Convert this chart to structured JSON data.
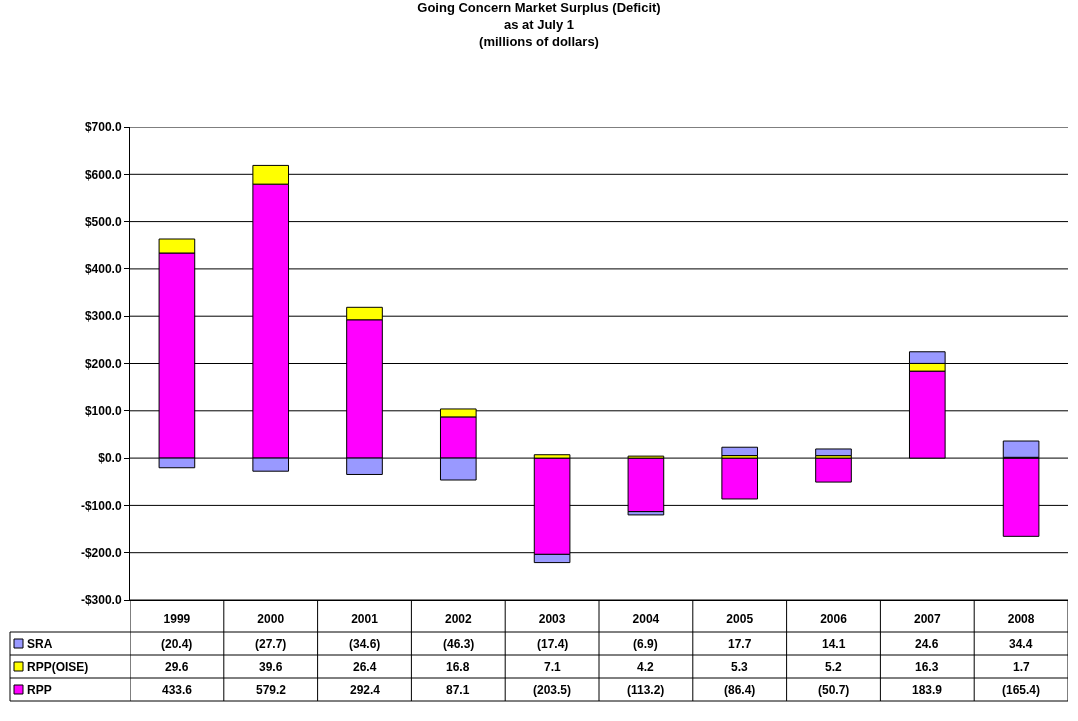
{
  "chart_data": {
    "type": "bar",
    "title": "Going Concern Market Surplus (Deficit)\nas at July 1\n(millions of dollars)",
    "categories": [
      "1999",
      "2000",
      "2001",
      "2002",
      "2003",
      "2004",
      "2005",
      "2006",
      "2007",
      "2008"
    ],
    "stacked": true,
    "series": [
      {
        "name": "RPP",
        "color": "#ff00ff",
        "values": [
          433.6,
          579.2,
          292.4,
          87.1,
          -203.5,
          -113.2,
          -86.4,
          -50.7,
          183.9,
          -165.4
        ],
        "value_labels": [
          "433.6",
          "579.2",
          "292.4",
          "87.1",
          "(203.5)",
          "(113.2)",
          "(86.4)",
          "(50.7)",
          "183.9",
          "(165.4)"
        ]
      },
      {
        "name": "RPP(OISE)",
        "color": "#ffff00",
        "values": [
          29.6,
          39.6,
          26.4,
          16.8,
          7.1,
          4.2,
          5.3,
          5.2,
          16.3,
          1.7
        ],
        "value_labels": [
          "29.6",
          "39.6",
          "26.4",
          "16.8",
          "7.1",
          "4.2",
          "5.3",
          "5.2",
          "16.3",
          "1.7"
        ]
      },
      {
        "name": "SRA",
        "color": "#9999ff",
        "values": [
          -20.4,
          -27.7,
          -34.6,
          -46.3,
          -17.4,
          -6.9,
          17.7,
          14.1,
          24.6,
          34.4
        ],
        "value_labels": [
          "(20.4)",
          "(27.7)",
          "(34.6)",
          "(46.3)",
          "(17.4)",
          "(6.9)",
          "17.7",
          "14.1",
          "24.6",
          "34.4"
        ]
      }
    ],
    "ylim": [
      -300,
      700
    ],
    "yticks": [
      {
        "value": -300,
        "label": "-$300.0"
      },
      {
        "value": -200,
        "label": "-$200.0"
      },
      {
        "value": -100,
        "label": "-$100.0"
      },
      {
        "value": 0,
        "label": "$0.0"
      },
      {
        "value": 100,
        "label": "$100.0"
      },
      {
        "value": 200,
        "label": "$200.0"
      },
      {
        "value": 300,
        "label": "$300.0"
      },
      {
        "value": 400,
        "label": "$400.0"
      },
      {
        "value": 500,
        "label": "$500.0"
      },
      {
        "value": 600,
        "label": "$600.0"
      },
      {
        "value": 700,
        "label": "$700.0"
      }
    ],
    "grid": "y",
    "legend": "bottom"
  }
}
